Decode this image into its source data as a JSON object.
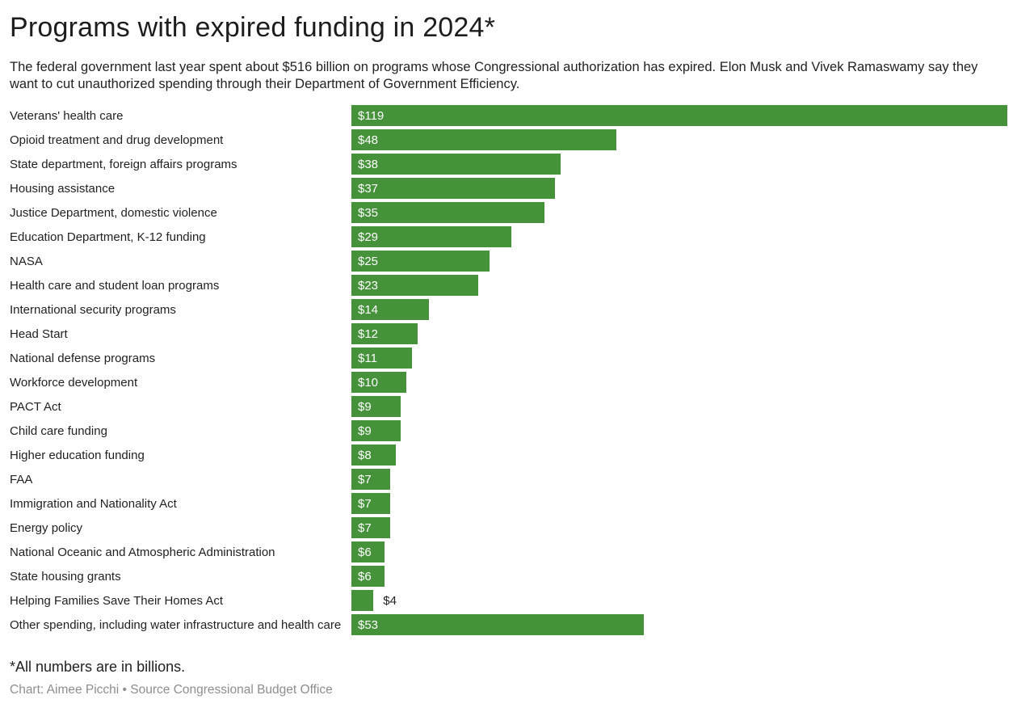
{
  "header": {
    "title": "Programs with expired funding in 2024*",
    "subtitle": "The federal government last year spent about $516 billion on programs whose Congressional authorization has expired. Elon Musk and Vivek Ramaswamy say they want to cut unauthorized spending through their Department of Government Efficiency."
  },
  "chart_data": {
    "type": "bar",
    "orientation": "horizontal",
    "unit": "billions of USD",
    "bar_color": "#45923B",
    "max_value": 119,
    "xlim": [
      0,
      119
    ],
    "grid": false,
    "legend": "none",
    "rows": [
      {
        "label": "Veterans' health care",
        "value": 119,
        "display": "$119",
        "value_label_position": "inside"
      },
      {
        "label": "Opioid treatment and drug development",
        "value": 48,
        "display": "$48",
        "value_label_position": "inside"
      },
      {
        "label": "State department, foreign affairs programs",
        "value": 38,
        "display": "$38",
        "value_label_position": "inside"
      },
      {
        "label": "Housing assistance",
        "value": 37,
        "display": "$37",
        "value_label_position": "inside"
      },
      {
        "label": "Justice Department, domestic violence",
        "value": 35,
        "display": "$35",
        "value_label_position": "inside"
      },
      {
        "label": "Education Department, K-12 funding",
        "value": 29,
        "display": "$29",
        "value_label_position": "inside"
      },
      {
        "label": "NASA",
        "value": 25,
        "display": "$25",
        "value_label_position": "inside"
      },
      {
        "label": "Health care and student loan programs",
        "value": 23,
        "display": "$23",
        "value_label_position": "inside"
      },
      {
        "label": "International security programs",
        "value": 14,
        "display": "$14",
        "value_label_position": "inside"
      },
      {
        "label": "Head Start",
        "value": 12,
        "display": "$12",
        "value_label_position": "inside"
      },
      {
        "label": "National defense programs",
        "value": 11,
        "display": "$11",
        "value_label_position": "inside"
      },
      {
        "label": "Workforce development",
        "value": 10,
        "display": "$10",
        "value_label_position": "inside"
      },
      {
        "label": "PACT Act",
        "value": 9,
        "display": "$9",
        "value_label_position": "inside"
      },
      {
        "label": "Child care funding",
        "value": 9,
        "display": "$9",
        "value_label_position": "inside"
      },
      {
        "label": "Higher education funding",
        "value": 8,
        "display": "$8",
        "value_label_position": "inside"
      },
      {
        "label": "FAA",
        "value": 7,
        "display": "$7",
        "value_label_position": "inside"
      },
      {
        "label": "Immigration and Nationality Act",
        "value": 7,
        "display": "$7",
        "value_label_position": "inside"
      },
      {
        "label": "Energy policy",
        "value": 7,
        "display": "$7",
        "value_label_position": "inside"
      },
      {
        "label": "National Oceanic and Atmospheric Administration",
        "value": 6,
        "display": "$6",
        "value_label_position": "inside"
      },
      {
        "label": "State housing grants",
        "value": 6,
        "display": "$6",
        "value_label_position": "inside"
      },
      {
        "label": "Helping Families Save Their Homes Act",
        "value": 4,
        "display": "$4",
        "value_label_position": "outside"
      },
      {
        "label": "Other spending, including water infrastructure and health care",
        "value": 53,
        "display": "$53",
        "value_label_position": "inside"
      }
    ]
  },
  "footer": {
    "footnote": "*All numbers are in billions.",
    "credit": "Chart: Aimee Picchi • Source Congressional Budget Office"
  }
}
